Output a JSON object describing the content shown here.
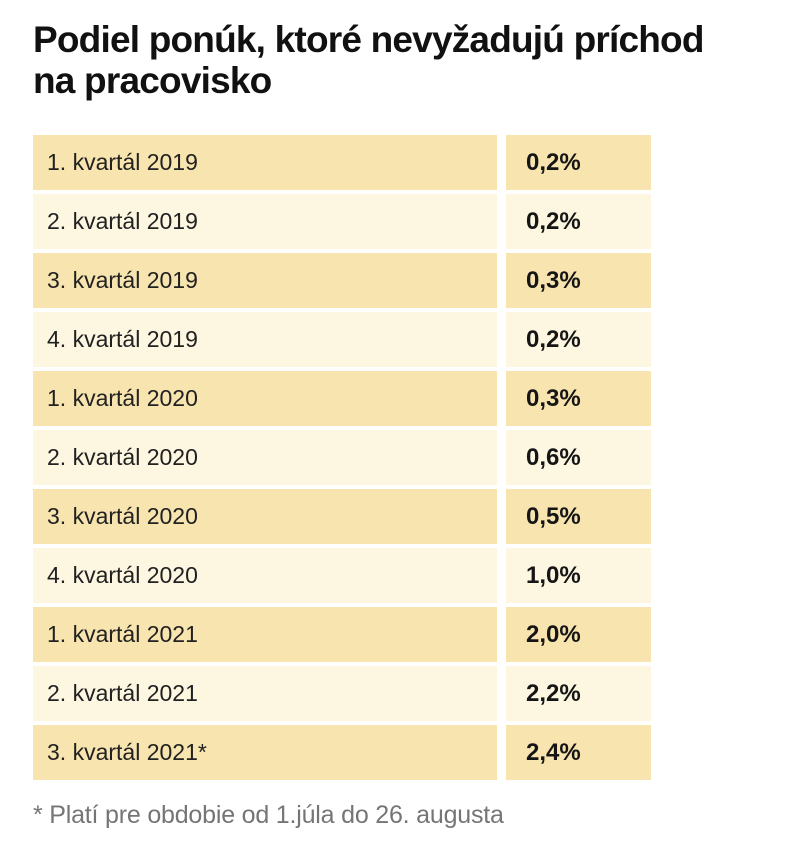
{
  "title_lines": [
    "Podiel ponúk, ktoré nevyžadujú príchod",
    "na pracovisko"
  ],
  "table": {
    "rows": [
      {
        "label": "1. kvartál 2019",
        "value": "0,2%"
      },
      {
        "label": "2. kvartál 2019",
        "value": "0,2%"
      },
      {
        "label": "3. kvartál 2019",
        "value": "0,3%"
      },
      {
        "label": "4. kvartál 2019",
        "value": "0,2%"
      },
      {
        "label": "1. kvartál 2020",
        "value": "0,3%"
      },
      {
        "label": "2. kvartál 2020",
        "value": "0,6%"
      },
      {
        "label": "3. kvartál 2020",
        "value": "0,5%"
      },
      {
        "label": "4. kvartál 2020",
        "value": "1,0%"
      },
      {
        "label": "1. kvartál 2021",
        "value": "2,0%"
      },
      {
        "label": "2. kvartál 2021",
        "value": "2,2%"
      },
      {
        "label": "3. kvartál 2021*",
        "value": "2,4%"
      }
    ]
  },
  "footnote": "* Platí pre obdobie od 1.júla do 26. augusta",
  "colors": {
    "row_dark": "#f8e4ae",
    "row_light": "#fdf6e1",
    "title_text": "#111111",
    "label_text": "#212121",
    "value_text": "#151515",
    "footnote_text": "#757575",
    "background": "#ffffff"
  },
  "chart_data": {
    "type": "table",
    "title": "Podiel ponúk, ktoré nevyžadujú príchod na pracovisko",
    "categories": [
      "1. kvartál 2019",
      "2. kvartál 2019",
      "3. kvartál 2019",
      "4. kvartál 2019",
      "1. kvartál 2020",
      "2. kvartál 2020",
      "3. kvartál 2020",
      "4. kvartál 2020",
      "1. kvartál 2021",
      "2. kvartál 2021",
      "3. kvartál 2021*"
    ],
    "values": [
      0.2,
      0.2,
      0.3,
      0.2,
      0.3,
      0.6,
      0.5,
      1.0,
      2.0,
      2.2,
      2.4
    ],
    "value_labels": [
      "0,2%",
      "0,2%",
      "0,3%",
      "0,2%",
      "0,3%",
      "0,6%",
      "0,5%",
      "1,0%",
      "2,0%",
      "2,2%",
      "2,4%"
    ],
    "unit": "%",
    "footnote": "* Platí pre obdobie od 1.júla do 26. augusta",
    "layout_hints": {
      "row_striping": [
        "#f8e4ae",
        "#fdf6e1"
      ],
      "value_column_align": "left",
      "grid": "white gutters between cells"
    }
  }
}
